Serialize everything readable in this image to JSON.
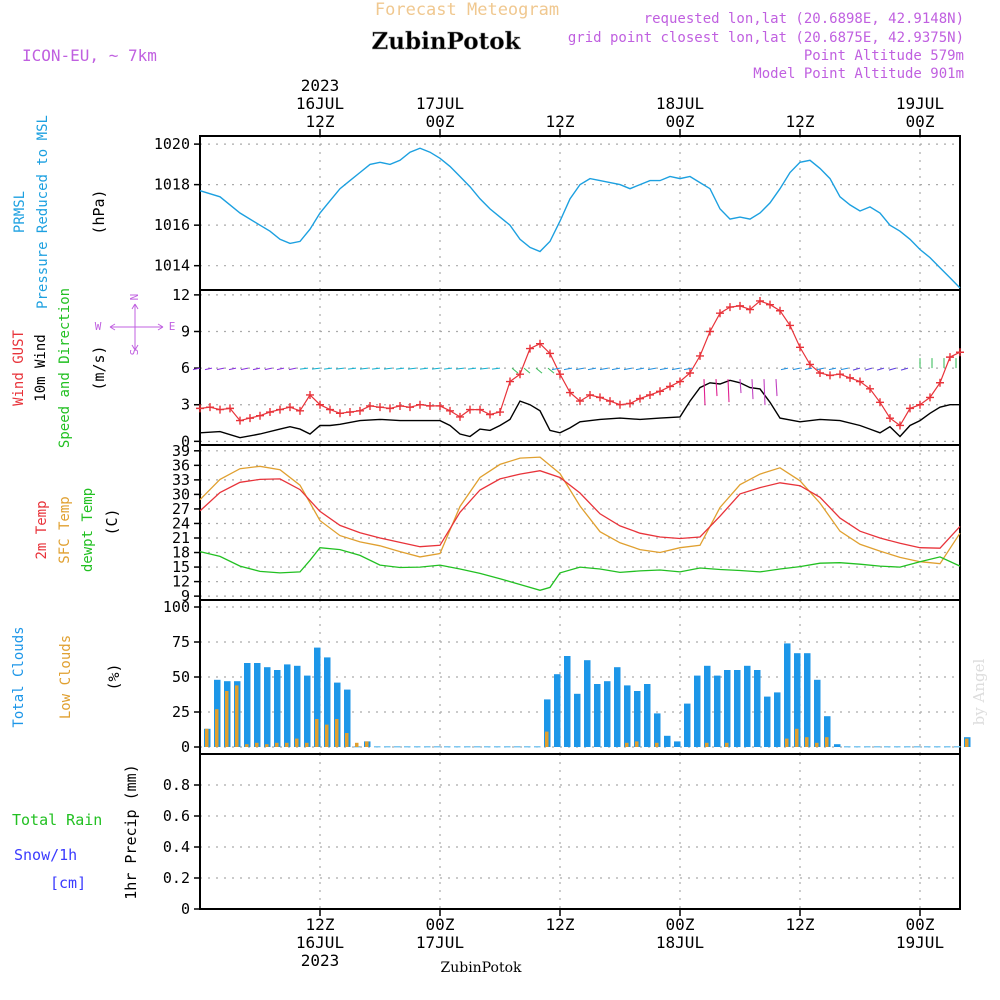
{
  "header": {
    "subtitle": "Forecast Meteogram",
    "location": "ZubinPotok",
    "model": "ICON-EU, ~ 7km",
    "requested": "requested lon,lat (20.6898E, 42.9148N)",
    "closest": "grid point closest lon,lat (20.6875E, 42.9375N)",
    "point_altitude": "Point Altitude 579m",
    "model_altitude": "Model Point Altitude 901m"
  },
  "footer": {
    "location": "ZubinPotok",
    "watermark": "by Angel"
  },
  "colors": {
    "pressure": "#1ca0e0",
    "gust": "#e8333a",
    "wind": "#000000",
    "t2m": "#e8333a",
    "sfc": "#e0a030",
    "dew": "#22c022",
    "total_clouds": "#1c96e8",
    "low_clouds": "#e0a030",
    "rain": "#22c022",
    "snow": "#3a3aff",
    "title_orange": "#f0c890",
    "info": "#c060e0"
  },
  "time_axis": {
    "top": [
      {
        "hour": "12Z",
        "date": "16JUL",
        "year": "2023"
      },
      {
        "hour": "00Z",
        "date": "17JUL",
        "year": ""
      },
      {
        "hour": "12Z",
        "date": "",
        "year": ""
      },
      {
        "hour": "00Z",
        "date": "18JUL",
        "year": ""
      },
      {
        "hour": "12Z",
        "date": "",
        "year": ""
      },
      {
        "hour": "00Z",
        "date": "19JUL",
        "year": ""
      }
    ],
    "bottom": [
      {
        "hour": "12Z",
        "date": "16JUL",
        "year": "2023"
      },
      {
        "hour": "00Z",
        "date": "17JUL",
        "year": ""
      },
      {
        "hour": "12Z",
        "date": "",
        "year": ""
      },
      {
        "hour": "00Z",
        "date": "18JUL",
        "year": ""
      },
      {
        "hour": "12Z",
        "date": "",
        "year": ""
      },
      {
        "hour": "00Z",
        "date": "19JUL",
        "year": ""
      }
    ],
    "t_start_hours_from_16jul_00z": 0,
    "t_end_hours_from_16jul_00z": 76
  },
  "chart_data": [
    {
      "id": "pressure",
      "type": "line",
      "ylabel_lines": [
        "PRMSL",
        "Pressure Reduced to MSL"
      ],
      "unit": "(hPa)",
      "ylim": [
        1012.8,
        1020.4
      ],
      "yticks": [
        1014,
        1016,
        1018,
        1020
      ],
      "series": [
        {
          "name": "PRMSL",
          "x": [
            0,
            2,
            4,
            6,
            7,
            8,
            9,
            10,
            11,
            12,
            13,
            14,
            15,
            16,
            17,
            18,
            19,
            20,
            21,
            22,
            23,
            24,
            25,
            26,
            27,
            28,
            29,
            30,
            31,
            32,
            33,
            34,
            35,
            36,
            37,
            38,
            39,
            40,
            41,
            42,
            43,
            44,
            45,
            46,
            47,
            48,
            49,
            50,
            51,
            52,
            53,
            54,
            55,
            56,
            57,
            58,
            59,
            60,
            61,
            62,
            63,
            64,
            65,
            66,
            67,
            68,
            69,
            70,
            71,
            72,
            73,
            74,
            75,
            76
          ],
          "values": [
            1017.7,
            1017.4,
            1016.6,
            1016.0,
            1015.7,
            1015.3,
            1015.1,
            1015.2,
            1015.8,
            1016.6,
            1017.2,
            1017.8,
            1018.2,
            1018.6,
            1019.0,
            1019.1,
            1019.0,
            1019.2,
            1019.6,
            1019.8,
            1019.6,
            1019.3,
            1018.9,
            1018.4,
            1017.9,
            1017.3,
            1016.8,
            1016.4,
            1016.0,
            1015.3,
            1014.9,
            1014.7,
            1015.2,
            1016.2,
            1017.3,
            1018.0,
            1018.3,
            1018.2,
            1018.1,
            1018.0,
            1017.8,
            1018.0,
            1018.2,
            1018.2,
            1018.4,
            1018.3,
            1018.4,
            1018.1,
            1017.8,
            1016.8,
            1016.3,
            1016.4,
            1016.3,
            1016.6,
            1017.1,
            1017.8,
            1018.6,
            1019.1,
            1019.2,
            1018.8,
            1018.3,
            1017.4,
            1017.0,
            1016.7,
            1016.9,
            1016.6,
            1016.0,
            1015.7,
            1015.3,
            1014.8,
            1014.4,
            1013.9,
            1013.4,
            1012.9
          ]
        }
      ]
    },
    {
      "id": "wind",
      "type": "line",
      "ylabel_lines": [
        "Wind GUST",
        "10m Wind",
        "Speed and Direction"
      ],
      "unit": "(m/s)",
      "ylim": [
        -0.3,
        12.4
      ],
      "yticks": [
        0,
        3,
        6,
        9,
        12
      ],
      "compass": {
        "n": "N",
        "s": "S",
        "w": "W",
        "e": "E"
      },
      "series": [
        {
          "name": "Wind GUST",
          "x": [
            0,
            1,
            2,
            3,
            4,
            5,
            6,
            7,
            8,
            9,
            10,
            11,
            12,
            13,
            14,
            15,
            16,
            17,
            18,
            19,
            20,
            21,
            22,
            23,
            24,
            25,
            26,
            27,
            28,
            29,
            30,
            31,
            32,
            33,
            34,
            35,
            36,
            37,
            38,
            39,
            40,
            41,
            42,
            43,
            44,
            45,
            46,
            47,
            48,
            49,
            50,
            51,
            52,
            53,
            54,
            55,
            56,
            57,
            58,
            59,
            60,
            61,
            62,
            63,
            64,
            65,
            66,
            67,
            68,
            69,
            70,
            71,
            72,
            73,
            74,
            75,
            76
          ],
          "values": [
            2.7,
            2.8,
            2.6,
            2.7,
            1.7,
            1.9,
            2.1,
            2.4,
            2.6,
            2.8,
            2.5,
            3.8,
            3.0,
            2.6,
            2.3,
            2.4,
            2.5,
            2.9,
            2.8,
            2.7,
            2.9,
            2.8,
            3.0,
            2.9,
            2.9,
            2.5,
            2.0,
            2.6,
            2.6,
            2.2,
            2.4,
            4.9,
            5.5,
            7.6,
            8.0,
            7.2,
            5.5,
            4.0,
            3.3,
            3.8,
            3.6,
            3.3,
            3.0,
            3.1,
            3.5,
            3.8,
            4.1,
            4.5,
            4.9,
            5.6,
            7.0,
            9.0,
            10.5,
            11.0,
            11.1,
            10.8,
            11.5,
            11.2,
            10.7,
            9.5,
            7.7,
            6.3,
            5.6,
            5.4,
            5.5,
            5.2,
            4.9,
            4.3,
            3.2,
            1.9,
            1.3,
            2.7,
            3.0,
            3.6,
            4.8,
            6.9,
            7.3
          ]
        },
        {
          "name": "10m Wind",
          "x": [
            0,
            2,
            4,
            6,
            8,
            9,
            10,
            11,
            12,
            13,
            14,
            16,
            18,
            20,
            22,
            24,
            25,
            26,
            27,
            28,
            29,
            30,
            31,
            32,
            33,
            34,
            35,
            36,
            37,
            38,
            40,
            42,
            44,
            46,
            48,
            49,
            50,
            51,
            52,
            53,
            54,
            55,
            56,
            57,
            58,
            60,
            62,
            64,
            66,
            67,
            68,
            69,
            70,
            71,
            72,
            73,
            74,
            75,
            76
          ],
          "values": [
            0.7,
            0.8,
            0.3,
            0.6,
            1.0,
            1.2,
            1.0,
            0.6,
            1.3,
            1.3,
            1.4,
            1.7,
            1.8,
            1.7,
            1.7,
            1.7,
            1.3,
            0.6,
            0.4,
            1.0,
            0.9,
            1.3,
            1.8,
            3.3,
            3.0,
            2.5,
            0.9,
            0.7,
            1.1,
            1.6,
            1.8,
            1.9,
            1.8,
            1.9,
            2.0,
            3.3,
            4.4,
            4.8,
            4.7,
            5.0,
            4.8,
            4.4,
            4.3,
            3.2,
            1.9,
            1.6,
            1.8,
            1.7,
            1.3,
            1.0,
            0.7,
            1.2,
            0.4,
            1.3,
            1.7,
            2.3,
            2.8,
            3.0,
            3.0
          ]
        }
      ]
    },
    {
      "id": "temperature",
      "type": "line",
      "ylabel_lines": [
        "2m Temp",
        "SFC Temp",
        "dewpt Temp"
      ],
      "unit": "(C)",
      "ylim": [
        8.2,
        40.2
      ],
      "yticks": [
        9,
        12,
        15,
        18,
        21,
        24,
        27,
        30,
        33,
        36,
        39
      ],
      "series": [
        {
          "name": "2m Temp",
          "x": [
            0,
            2,
            4,
            6,
            8,
            10,
            12,
            14,
            16,
            18,
            20,
            22,
            24,
            26,
            28,
            30,
            32,
            34,
            36,
            38,
            40,
            42,
            44,
            46,
            48,
            50,
            52,
            54,
            56,
            58,
            60,
            62,
            64,
            66,
            68,
            70,
            72,
            74,
            76
          ],
          "values": [
            26.6,
            30.4,
            32.5,
            33.1,
            33.2,
            31.0,
            26.5,
            23.6,
            22.1,
            21.0,
            20.1,
            19.2,
            19.5,
            26.3,
            30.9,
            33.2,
            34.2,
            34.9,
            33.5,
            30.3,
            26.0,
            23.5,
            22.0,
            21.2,
            20.9,
            21.2,
            25.5,
            30.1,
            31.4,
            32.4,
            31.8,
            29.4,
            25.1,
            22.4,
            21.0,
            19.9,
            19.0,
            18.9,
            23.4
          ]
        },
        {
          "name": "SFC Temp",
          "x": [
            0,
            2,
            4,
            6,
            8,
            10,
            12,
            14,
            16,
            18,
            20,
            22,
            24,
            26,
            28,
            30,
            32,
            34,
            36,
            38,
            40,
            42,
            44,
            46,
            48,
            50,
            52,
            54,
            56,
            58,
            60,
            62,
            64,
            66,
            68,
            70,
            72,
            74,
            76
          ],
          "values": [
            28.9,
            33.1,
            35.3,
            35.8,
            35.1,
            31.9,
            24.6,
            21.5,
            20.2,
            19.4,
            18.2,
            17.1,
            17.8,
            27.5,
            33.5,
            36.2,
            37.5,
            37.7,
            34.3,
            27.6,
            22.3,
            20.0,
            18.6,
            18.0,
            19.0,
            19.5,
            27.3,
            32.0,
            34.2,
            35.5,
            32.8,
            28.2,
            22.4,
            19.7,
            18.3,
            17.0,
            16.1,
            15.7,
            22.0
          ]
        },
        {
          "name": "dewpt Temp",
          "x": [
            0,
            2,
            4,
            6,
            8,
            10,
            11,
            12,
            14,
            16,
            18,
            20,
            22,
            24,
            26,
            28,
            30,
            32,
            34,
            35,
            36,
            38,
            40,
            42,
            44,
            46,
            48,
            50,
            52,
            54,
            56,
            58,
            60,
            62,
            64,
            66,
            68,
            70,
            72,
            74,
            76
          ],
          "values": [
            18.2,
            17.2,
            15.2,
            14.1,
            13.8,
            14.0,
            16.4,
            19.0,
            18.6,
            17.4,
            15.4,
            14.9,
            15.0,
            15.4,
            14.6,
            13.7,
            12.6,
            11.4,
            10.2,
            10.8,
            13.8,
            15.0,
            14.6,
            13.9,
            14.2,
            14.4,
            14.0,
            14.8,
            14.5,
            14.3,
            14.0,
            14.6,
            15.1,
            15.8,
            15.9,
            15.6,
            15.2,
            15.0,
            16.1,
            17.1,
            15.2
          ]
        }
      ]
    },
    {
      "id": "clouds",
      "type": "bar",
      "ylabel_lines": [
        "Total Clouds",
        "Low Clouds"
      ],
      "unit": "(%)",
      "ylim": [
        -5,
        105
      ],
      "yticks": [
        0,
        25,
        50,
        75,
        100
      ],
      "series": [
        {
          "name": "Total Clouds",
          "values": [
            13,
            48,
            47,
            47,
            60,
            60,
            57,
            55,
            59,
            58,
            51,
            71,
            64,
            46,
            41,
            0,
            4,
            0,
            0,
            0,
            0,
            0,
            0,
            0,
            0,
            0,
            0,
            0,
            0,
            0,
            0,
            0,
            0,
            0,
            34,
            52,
            65,
            38,
            62,
            45,
            47,
            57,
            44,
            40,
            45,
            24,
            8,
            4,
            31,
            51,
            58,
            51,
            55,
            55,
            58,
            55,
            36,
            39,
            74,
            67,
            67,
            48,
            22,
            2,
            0,
            0,
            0,
            0,
            0,
            0,
            0,
            0,
            0,
            0,
            0,
            0,
            7
          ]
        },
        {
          "name": "Low Clouds",
          "values": [
            13,
            27,
            40,
            44,
            2,
            3,
            2,
            3,
            3,
            6,
            3,
            20,
            16,
            20,
            10,
            3,
            4,
            0,
            0,
            0,
            0,
            0,
            0,
            0,
            0,
            0,
            0,
            0,
            0,
            0,
            0,
            0,
            0,
            0,
            11,
            0,
            0,
            0,
            0,
            0,
            0,
            0,
            3,
            4,
            0,
            3,
            0,
            0,
            0,
            0,
            3,
            0,
            3,
            0,
            0,
            0,
            0,
            0,
            6,
            13,
            7,
            3,
            7,
            0,
            0,
            0,
            0,
            0,
            0,
            0,
            0,
            0,
            0,
            0,
            0,
            0,
            6
          ]
        }
      ]
    },
    {
      "id": "precip",
      "type": "bar",
      "ylabel_lines": [
        "Total Rain",
        "Snow/1h",
        "[cm]"
      ],
      "unit": "1hr Precip (mm)",
      "ylim": [
        0,
        1.0
      ],
      "yticks": [
        0,
        0.2,
        0.4,
        0.6,
        0.8
      ],
      "ytick_labels": [
        "0",
        "0.2",
        "0.4",
        "0.6",
        "0.8"
      ],
      "series": [
        {
          "name": "Total Rain",
          "values": []
        },
        {
          "name": "Snow/1h",
          "values": []
        }
      ]
    }
  ]
}
